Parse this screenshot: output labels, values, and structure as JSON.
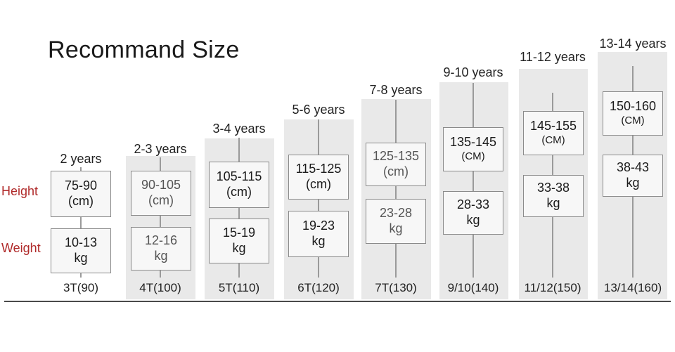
{
  "title": "Recommand Size",
  "row_labels": {
    "height": "Height",
    "weight": "Weight"
  },
  "chart_data": {
    "type": "table",
    "title": "Recommand Size",
    "rows": [
      "Height",
      "Weight"
    ],
    "columns": [
      {
        "age": "2 years",
        "size": "3T(90)",
        "height": "75-90",
        "height_unit": "(cm)",
        "weight": "10-13",
        "weight_unit": "kg"
      },
      {
        "age": "2-3 years",
        "size": "4T(100)",
        "height": "90-105",
        "height_unit": "(cm)",
        "weight": "12-16",
        "weight_unit": "kg"
      },
      {
        "age": "3-4 years",
        "size": "5T(110)",
        "height": "105-115",
        "height_unit": "(cm)",
        "weight": "15-19",
        "weight_unit": "kg"
      },
      {
        "age": "5-6 years",
        "size": "6T(120)",
        "height": "115-125",
        "height_unit": "(cm)",
        "weight": "19-23",
        "weight_unit": "kg"
      },
      {
        "age": "7-8 years",
        "size": "7T(130)",
        "height": "125-135",
        "height_unit": "(cm)",
        "weight": "23-28",
        "weight_unit": "kg"
      },
      {
        "age": "9-10 years",
        "size": "9/10(140)",
        "height": "135-145",
        "height_unit": "(CM)",
        "weight": "28-33",
        "weight_unit": "kg"
      },
      {
        "age": "11-12 years",
        "size": "11/12(150)",
        "height": "145-155",
        "height_unit": "(CM)",
        "weight": "33-38",
        "weight_unit": "kg"
      },
      {
        "age": "13-14 years",
        "size": "13/14(160)",
        "height": "150-160",
        "height_unit": "(CM)",
        "weight": "38-43",
        "weight_unit": "kg"
      }
    ]
  },
  "colors": {
    "row_label": "#b02a2a",
    "column_background": "#e9e9e9",
    "box_border": "#8a8a8a"
  }
}
